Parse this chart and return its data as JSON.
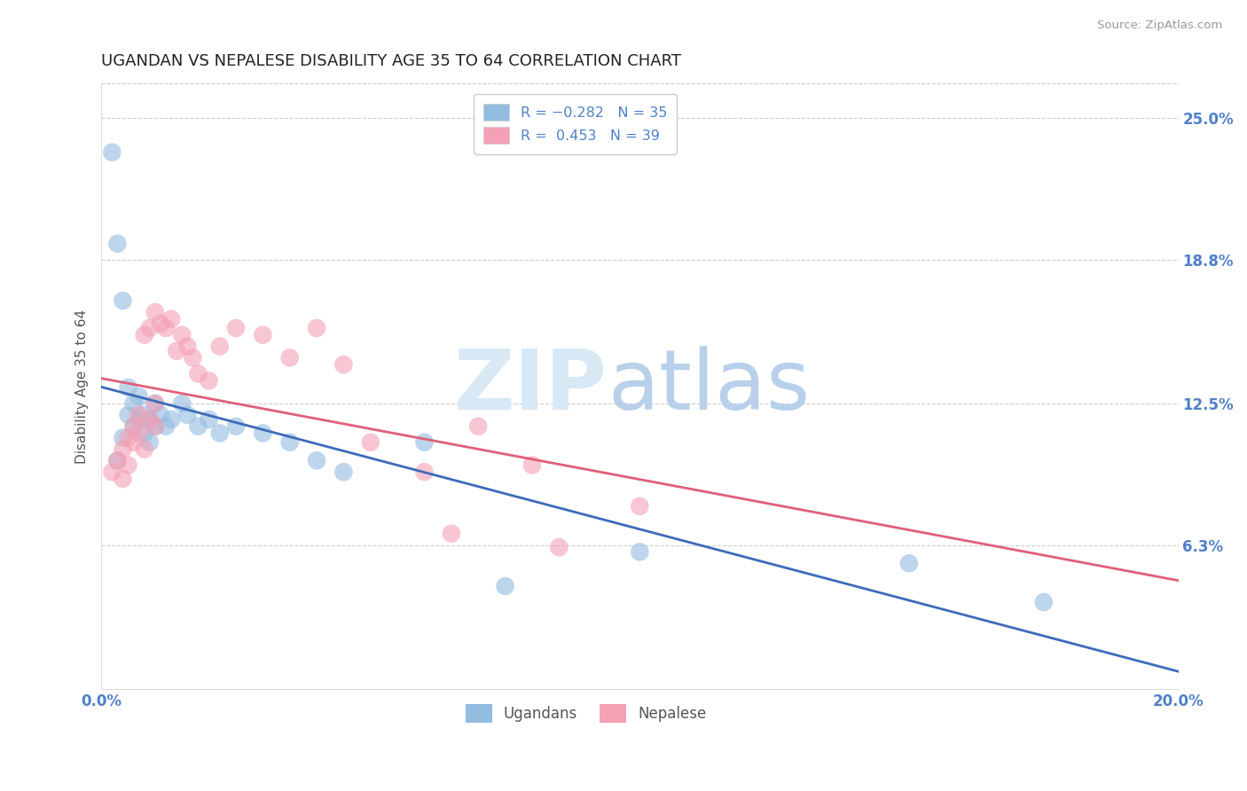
{
  "title": "UGANDAN VS NEPALESE DISABILITY AGE 35 TO 64 CORRELATION CHART",
  "source": "Source: ZipAtlas.com",
  "ylabel": "Disability Age 35 to 64",
  "xlim": [
    0.0,
    0.2
  ],
  "ylim": [
    0.0,
    0.265
  ],
  "xtick_labels": [
    "0.0%",
    "20.0%"
  ],
  "xtick_positions": [
    0.0,
    0.2
  ],
  "ytick_labels": [
    "6.3%",
    "12.5%",
    "18.8%",
    "25.0%"
  ],
  "ytick_positions": [
    0.063,
    0.125,
    0.188,
    0.25
  ],
  "ugandan_color": "#92bce0",
  "nepalese_color": "#f4a0b5",
  "ugandan_line_color": "#3d6bba",
  "nepalese_line_color": "#e0607a",
  "gray_line_color": "#c0c0c0",
  "background_color": "#ffffff",
  "grid_color": "#cccccc",
  "title_color": "#222222",
  "title_fontsize": 13,
  "axis_label_color": "#555555",
  "tick_label_color": "#5080c8",
  "ugandan_x": [
    0.002,
    0.003,
    0.003,
    0.004,
    0.004,
    0.005,
    0.005,
    0.006,
    0.006,
    0.007,
    0.007,
    0.008,
    0.008,
    0.009,
    0.009,
    0.01,
    0.01,
    0.011,
    0.012,
    0.013,
    0.015,
    0.016,
    0.018,
    0.02,
    0.022,
    0.025,
    0.03,
    0.035,
    0.04,
    0.045,
    0.06,
    0.075,
    0.1,
    0.15,
    0.175
  ],
  "ugandan_y": [
    0.235,
    0.195,
    0.1,
    0.17,
    0.11,
    0.132,
    0.12,
    0.125,
    0.115,
    0.128,
    0.118,
    0.12,
    0.112,
    0.118,
    0.108,
    0.125,
    0.115,
    0.12,
    0.115,
    0.118,
    0.125,
    0.12,
    0.115,
    0.118,
    0.112,
    0.115,
    0.112,
    0.108,
    0.1,
    0.095,
    0.108,
    0.045,
    0.06,
    0.055,
    0.038
  ],
  "nepalese_x": [
    0.002,
    0.003,
    0.004,
    0.004,
    0.005,
    0.005,
    0.006,
    0.006,
    0.007,
    0.007,
    0.008,
    0.008,
    0.009,
    0.009,
    0.01,
    0.01,
    0.01,
    0.011,
    0.012,
    0.013,
    0.014,
    0.015,
    0.016,
    0.017,
    0.018,
    0.02,
    0.022,
    0.025,
    0.03,
    0.035,
    0.04,
    0.045,
    0.05,
    0.06,
    0.065,
    0.07,
    0.08,
    0.085,
    0.1
  ],
  "nepalese_y": [
    0.095,
    0.1,
    0.105,
    0.092,
    0.11,
    0.098,
    0.115,
    0.108,
    0.12,
    0.112,
    0.155,
    0.105,
    0.158,
    0.118,
    0.165,
    0.125,
    0.115,
    0.16,
    0.158,
    0.162,
    0.148,
    0.155,
    0.15,
    0.145,
    0.138,
    0.135,
    0.15,
    0.158,
    0.155,
    0.145,
    0.158,
    0.142,
    0.108,
    0.095,
    0.068,
    0.115,
    0.098,
    0.062,
    0.08
  ]
}
